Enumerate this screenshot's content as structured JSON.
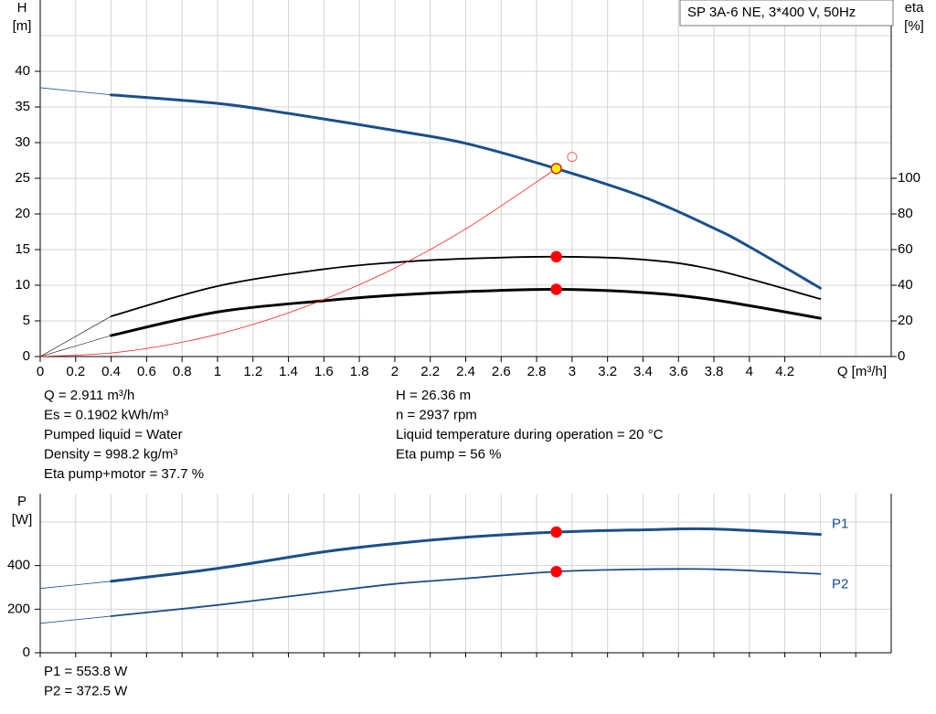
{
  "chart_data": [
    {
      "type": "line",
      "title": "SP 3A-6 NE, 3*400 V, 50Hz",
      "ylabel": "H",
      "yunit": "[m]",
      "y2label": "eta",
      "y2unit": "[%]",
      "xlabel": "Q [m³/h]",
      "xlim": [
        0,
        4.8
      ],
      "xticks": [
        0,
        0.2,
        0.4,
        0.6,
        0.8,
        1.0,
        1.2,
        1.4,
        1.6,
        1.8,
        2.0,
        2.2,
        2.4,
        2.6,
        2.8,
        3.0,
        3.2,
        3.4,
        3.6,
        3.8,
        4.0,
        4.2
      ],
      "xgrid": [
        0,
        0.2,
        0.4,
        0.6,
        0.8,
        1.0,
        1.2,
        1.4,
        1.6,
        1.8,
        2.0,
        2.2,
        2.4,
        2.6,
        2.8,
        3.0,
        3.2,
        3.4,
        3.6,
        3.8,
        4.0,
        4.2,
        4.4,
        4.6
      ],
      "ylim": [
        0,
        50
      ],
      "yticks": [
        0,
        5,
        10,
        15,
        20,
        25,
        30,
        35,
        40
      ],
      "ygrid": [
        5,
        10,
        15,
        20,
        25,
        30,
        35,
        40,
        45
      ],
      "y2lim": [
        0,
        200
      ],
      "y2ticks": [
        0,
        20,
        40,
        60,
        80,
        100
      ],
      "grid": true,
      "series": [
        {
          "x": [
            0,
            0.4
          ],
          "values": [
            37.7,
            36.7
          ],
          "color": "#1a4f8b",
          "width": 0.8
        },
        {
          "x": [
            0.4,
            1.0,
            1.4,
            2.0,
            2.4,
            2.911,
            3.4,
            3.8,
            4.0,
            4.4
          ],
          "values": [
            36.7,
            35.5,
            34.1,
            31.7,
            29.9,
            26.36,
            22.4,
            18.0,
            15.4,
            9.6
          ],
          "color": "#1a4f8b",
          "width": 3
        },
        {
          "x": [
            0,
            0.4
          ],
          "values": [
            0,
            22.6
          ],
          "axis": "y2",
          "color": "#000000",
          "width": 0.6
        },
        {
          "x": [
            0.4,
            1.0,
            1.6,
            2.0,
            2.4,
            2.911,
            3.4,
            3.8,
            4.4
          ],
          "values": [
            22.6,
            39.5,
            49,
            52.8,
            54.9,
            56,
            54.4,
            48.7,
            32.3
          ],
          "axis": "y2",
          "color": "#000000",
          "width": 1.8
        },
        {
          "x": [
            0,
            0.4
          ],
          "values": [
            0,
            11.8
          ],
          "axis": "y2",
          "color": "#000000",
          "width": 0.6
        },
        {
          "x": [
            0.4,
            1.0,
            1.6,
            2.0,
            2.4,
            2.911,
            3.4,
            3.8,
            4.4
          ],
          "values": [
            11.8,
            25,
            31.3,
            34.4,
            36.4,
            37.7,
            35.9,
            31.8,
            21.5
          ],
          "axis": "y2",
          "color": "#000000",
          "width": 3
        },
        {
          "x": [
            0,
            0.4,
            0.8,
            1.2,
            1.6,
            2.0,
            2.4,
            2.911
          ],
          "values": [
            0,
            0.5,
            2.0,
            4.5,
            8.0,
            12.4,
            17.9,
            26.36
          ],
          "color": "#ff2020",
          "width": 0.8
        }
      ],
      "points": [
        {
          "x": 3.0,
          "y": 28,
          "color": "#ff6060",
          "hollow": true
        },
        {
          "x": 2.911,
          "y": 56,
          "axis": "y2",
          "color": "#ff0000"
        },
        {
          "x": 2.911,
          "y": 37.7,
          "axis": "y2",
          "color": "#ff0000"
        },
        {
          "x": 2.911,
          "y": 26.36,
          "color": "#ffee00"
        }
      ],
      "readout_left": [
        "Q = 2.911 m³/h",
        "Es = 0.1902 kWh/m³",
        "Pumped liquid = Water",
        "Density = 998.2 kg/m³",
        "Eta pump+motor = 37.7 %"
      ],
      "readout_right": [
        "H = 26.36 m",
        "n = 2937 rpm",
        "Liquid temperature during operation = 20 °C",
        "Eta pump = 56 %"
      ]
    },
    {
      "type": "line",
      "ylabel": "P",
      "yunit": "[W]",
      "xlim": [
        0,
        4.8
      ],
      "xgrid": [
        0,
        0.2,
        0.4,
        0.6,
        0.8,
        1.0,
        1.2,
        1.4,
        1.6,
        1.8,
        2.0,
        2.2,
        2.4,
        2.6,
        2.8,
        3.0,
        3.2,
        3.4,
        3.6,
        3.8,
        4.0,
        4.2,
        4.4,
        4.6
      ],
      "ylim": [
        0,
        730
      ],
      "yticks": [
        0,
        200,
        400
      ],
      "ygrid": [
        200,
        400,
        600
      ],
      "grid": true,
      "series": [
        {
          "x": [
            0,
            0.4
          ],
          "values": [
            295,
            328
          ],
          "color": "#1a4f8b",
          "width": 0.8
        },
        {
          "name": "P1",
          "x": [
            0.4,
            1.0,
            1.6,
            2.0,
            2.4,
            2.911,
            3.4,
            3.8,
            4.4
          ],
          "values": [
            328,
            387,
            463,
            501,
            530,
            553.8,
            564,
            568,
            543
          ],
          "color": "#1a4f8b",
          "width": 3
        },
        {
          "x": [
            0,
            0.4
          ],
          "values": [
            135,
            168
          ],
          "color": "#1a4f8b",
          "width": 0.8
        },
        {
          "name": "P2",
          "x": [
            0.4,
            1.0,
            1.6,
            2.0,
            2.4,
            2.911,
            3.4,
            3.8,
            4.4
          ],
          "values": [
            168,
            219,
            278,
            316,
            341,
            372.5,
            383,
            383,
            362
          ],
          "color": "#1a4f8b",
          "width": 1.8
        }
      ],
      "points": [
        {
          "x": 2.911,
          "y": 553.8,
          "color": "#ff0000"
        },
        {
          "x": 2.911,
          "y": 372.5,
          "color": "#ff0000"
        }
      ],
      "readout_left": [
        "P1 = 553.8 W",
        "P2 = 372.5 W"
      ]
    }
  ]
}
